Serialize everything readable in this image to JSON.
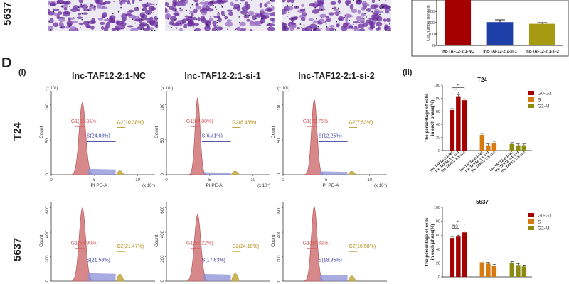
{
  "top": {
    "row_label": "5637",
    "chart": {
      "ylabel": "Cell number per field",
      "categories": [
        "lnc-TAF12-2:1-NC",
        "lnc-TAF12-2:1-si-1",
        "lnc-TAF12-2:1-si-2"
      ],
      "values": [
        400,
        205,
        190
      ],
      "errors": [
        20,
        20,
        10
      ],
      "colors": [
        "#a40000",
        "#1f3fa8",
        "#a59a10"
      ],
      "ylim": [
        0,
        400
      ],
      "ticks": [
        "0",
        "100",
        "200",
        "300"
      ]
    }
  },
  "panel_d": {
    "letter": "D",
    "sub_i": "(i)",
    "sub_ii": "(ii)",
    "columns": [
      "lnc-TAF12-2:1-NC",
      "lnc-TAF12-2:1-si-1",
      "lnc-TAF12-2:1-si-2"
    ],
    "rows": [
      "T24",
      "5637"
    ],
    "xaxis_label": "PI PE-A",
    "yaxis_label": "Count",
    "x_exp": "(x 10⁴)",
    "y_exp": "(x 10¹)",
    "x_ticks": [
      "0",
      "5",
      "10"
    ],
    "t24_y_ticks": [
      "0",
      "50",
      "100"
    ],
    "b5637_y_ticks": [
      "0",
      "200",
      "400",
      "600"
    ],
    "gates": {
      "t24": [
        {
          "g1": "G1(65.31%)",
          "s": "S(24.08%)",
          "g2": "G2(10.38%)"
        },
        {
          "g1": "G1(84.88%)",
          "s": "S(6.41%)",
          "g2": "G2(8.43%)"
        },
        {
          "g1": "G1(79.75%)",
          "s": "S(12.25%)",
          "g2": "G2(7.53%)"
        }
      ],
      "b5637": [
        {
          "g1": "G1(58.90%)",
          "s": "S(21.58%)",
          "g2": "G2(21.47%)"
        },
        {
          "g1": "G1(58.22%)",
          "s": "S(17.63%)",
          "g2": "G2(24.10%)"
        },
        {
          "g1": "G1(64.32%)",
          "s": "S(18.95%)",
          "g2": "G2(16.58%)"
        }
      ]
    }
  },
  "chart_data": [
    {
      "type": "bar",
      "title": "T24",
      "ylabel": "The percentage of cells in each phase(%)",
      "ylim": [
        0,
        100
      ],
      "ticks": [
        "0",
        "20",
        "40",
        "60",
        "80",
        "100"
      ],
      "groups": [
        "G0-G1",
        "S",
        "G2-M"
      ],
      "group_colors": [
        "#a40000",
        "#d77a11",
        "#8c8a10"
      ],
      "categories": [
        "lnc-TAF12-2:1-NC",
        "lnc-TAF12-2:1-si-1",
        "lnc-TAF12-2:1-si-2"
      ],
      "values": [
        [
          62,
          83,
          77
        ],
        [
          24,
          8,
          12
        ],
        [
          10,
          8,
          8
        ]
      ],
      "sig": [
        "**",
        "**"
      ],
      "legend": [
        "G0-G1",
        "S",
        "G2-M"
      ]
    },
    {
      "type": "bar",
      "title": "5637",
      "ylabel": "The percentage of cells in each phase(%)",
      "ylim": [
        0,
        100
      ],
      "ticks": [
        "0",
        "20",
        "40",
        "60",
        "80",
        "100"
      ],
      "groups": [
        "G0-G1",
        "S",
        "G2-M"
      ],
      "group_colors": [
        "#a40000",
        "#d77a11",
        "#8c8a10"
      ],
      "categories": [
        "lnc-TAF12-2:1-NC",
        "lnc-TAF12-2:1-si-1",
        "lnc-TAF12-2:1-si-2"
      ],
      "values": [
        [
          56,
          58,
          64
        ],
        [
          21,
          19,
          16
        ],
        [
          20,
          17,
          15
        ]
      ],
      "sig": [
        "NS",
        "**"
      ],
      "legend": [
        "G0-G1",
        "S",
        "G2-M"
      ]
    }
  ]
}
